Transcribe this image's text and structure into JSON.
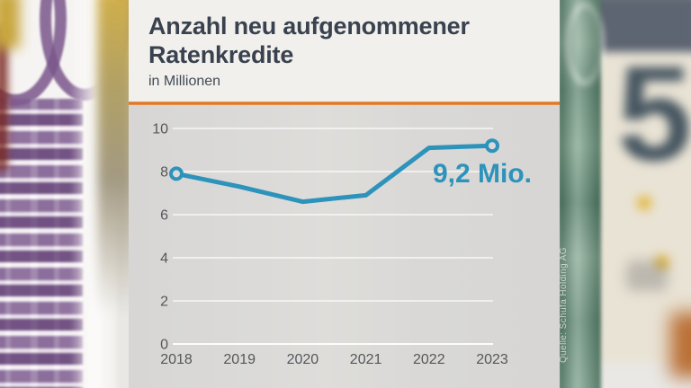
{
  "panel": {
    "title_line1": "Anzahl neu aufgenommener",
    "title_line2": "Ratenkredite",
    "subtitle": "in Millionen",
    "source": "Quelle: Schufa Holding AG",
    "accent_color": "#e0762c"
  },
  "background": {
    "five_digit": "5"
  },
  "chart_data": {
    "type": "line",
    "title": "Anzahl neu aufgenommener Ratenkredite",
    "subtitle": "in Millionen",
    "categories": [
      "2018",
      "2019",
      "2020",
      "2021",
      "2022",
      "2023"
    ],
    "values": [
      7.9,
      7.3,
      6.6,
      6.9,
      9.1,
      9.2
    ],
    "ylim": [
      0,
      10
    ],
    "yticks": [
      0,
      2,
      4,
      6,
      8,
      10
    ],
    "grid": true,
    "grid_color": "#ffffff",
    "line_color": "#2d93bb",
    "marker_points": [
      "first",
      "last"
    ],
    "annotation": {
      "text": "9,2 Mio.",
      "at_category": "2023",
      "value": 9.2
    },
    "axis_label_color": "#54575b",
    "source": "Quelle: Schufa Holding AG"
  }
}
